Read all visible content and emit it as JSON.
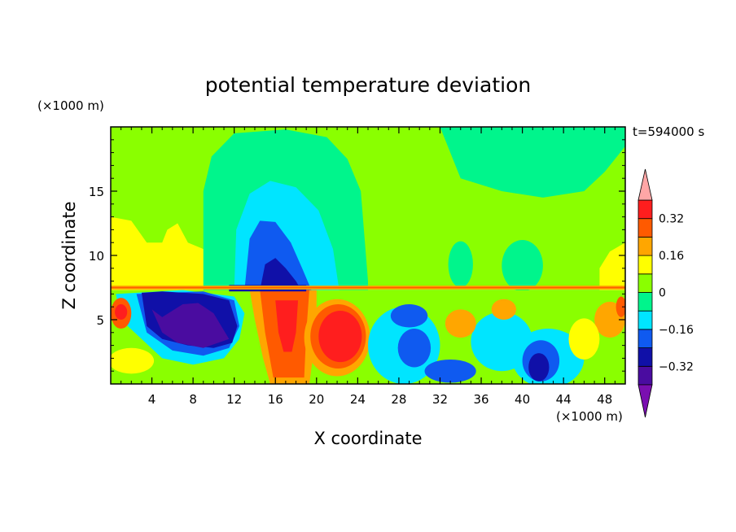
{
  "chart_data": {
    "type": "heatmap",
    "title": "potential temperature deviation",
    "xlabel": "X coordinate",
    "ylabel": "Z coordinate",
    "x_unit": "(×1000 m)",
    "y_unit": "(×1000 m)",
    "time_label": "t=594000 s",
    "xlim": [
      0,
      50
    ],
    "ylim": [
      0,
      20
    ],
    "x_ticks": [
      4,
      8,
      12,
      16,
      20,
      24,
      28,
      32,
      36,
      40,
      44,
      48
    ],
    "y_ticks": [
      5,
      10,
      15
    ],
    "colorbar": {
      "levels": [
        -0.4,
        -0.32,
        -0.24,
        -0.16,
        -0.08,
        0,
        0.08,
        0.16,
        0.24,
        0.32,
        0.4
      ],
      "tick_labels": [
        "0.32",
        "0.16",
        "0",
        "−0.16",
        "−0.32"
      ],
      "tick_values": [
        0.32,
        0.16,
        0,
        -0.16,
        -0.32
      ],
      "colors": [
        "#7a0fb0",
        "#4a0ca0",
        "#1010a8",
        "#0f5af0",
        "#00e5ff",
        "#00f58c",
        "#8aff00",
        "#ffff00",
        "#ffa600",
        "#ff5a00",
        "#ff1e1e",
        "#ffa6a6"
      ]
    },
    "regions": [
      {
        "desc": "upper background",
        "value": 0.02,
        "shape": "rect",
        "x": [
          0,
          50
        ],
        "y": [
          7.3,
          20
        ]
      },
      {
        "desc": "upper-left mid positive",
        "value": 0.06,
        "shape": "rect",
        "x": [
          0,
          9
        ],
        "y": [
          7.3,
          13.5
        ]
      },
      {
        "desc": "upper-left yellow",
        "value": 0.13,
        "shape": "poly",
        "pts": [
          [
            0,
            7.3
          ],
          [
            0,
            13
          ],
          [
            2,
            12.7
          ],
          [
            3.5,
            11
          ],
          [
            5,
            11
          ],
          [
            5.5,
            12
          ],
          [
            6.5,
            12.5
          ],
          [
            7.5,
            11
          ],
          [
            9,
            10.5
          ],
          [
            11,
            8.5
          ],
          [
            11,
            7.3
          ]
        ]
      },
      {
        "desc": "upper-right yellow",
        "value": 0.13,
        "shape": "poly",
        "pts": [
          [
            47.5,
            7.3
          ],
          [
            47.5,
            9
          ],
          [
            48.5,
            10.3
          ],
          [
            50,
            11
          ],
          [
            50,
            7.3
          ]
        ]
      },
      {
        "desc": "large weak negative plume",
        "value": -0.05,
        "shape": "poly",
        "pts": [
          [
            9,
            7.3
          ],
          [
            9,
            15
          ],
          [
            9.8,
            17.7
          ],
          [
            12,
            19.5
          ],
          [
            17,
            19.8
          ],
          [
            21,
            19.2
          ],
          [
            23,
            17.5
          ],
          [
            24.3,
            15
          ],
          [
            24.7,
            11
          ],
          [
            25,
            8
          ],
          [
            25,
            7.3
          ]
        ]
      },
      {
        "desc": "weak negative strip top right",
        "value": -0.05,
        "shape": "poly",
        "pts": [
          [
            32,
            20
          ],
          [
            34,
            16
          ],
          [
            38,
            15
          ],
          [
            42,
            14.5
          ],
          [
            46,
            15
          ],
          [
            48,
            16.5
          ],
          [
            50,
            18.5
          ],
          [
            50,
            20
          ]
        ]
      },
      {
        "desc": "cyan plume",
        "value": -0.12,
        "shape": "poly",
        "pts": [
          [
            12,
            7.3
          ],
          [
            12.2,
            12
          ],
          [
            13.5,
            14.8
          ],
          [
            15.5,
            15.8
          ],
          [
            18,
            15.3
          ],
          [
            20.2,
            13.5
          ],
          [
            21.6,
            10.5
          ],
          [
            22.2,
            7.3
          ]
        ]
      },
      {
        "desc": "blue plume",
        "value": -0.2,
        "shape": "poly",
        "pts": [
          [
            13,
            7.3
          ],
          [
            13.5,
            11.3
          ],
          [
            14.5,
            12.7
          ],
          [
            16,
            12.6
          ],
          [
            17.5,
            11
          ],
          [
            18.6,
            9
          ],
          [
            19.5,
            7.3
          ]
        ]
      },
      {
        "desc": "navy plume",
        "value": -0.28,
        "shape": "poly",
        "pts": [
          [
            14.5,
            7.3
          ],
          [
            15,
            9.3
          ],
          [
            16,
            9.8
          ],
          [
            17,
            9
          ],
          [
            18,
            8
          ],
          [
            18.5,
            7.3
          ]
        ]
      },
      {
        "desc": "weak negative blob",
        "value": -0.05,
        "shape": "ellipse",
        "cx": 34,
        "cy": 9.3,
        "rx": 1.2,
        "ry": 1.8
      },
      {
        "desc": "weak negative blob",
        "value": -0.05,
        "shape": "ellipse",
        "cx": 40,
        "cy": 9.2,
        "rx": 2,
        "ry": 2
      },
      {
        "desc": "lower background",
        "value": 0.03,
        "shape": "rect",
        "x": [
          0,
          50
        ],
        "y": [
          0,
          7.3
        ]
      },
      {
        "desc": "lower cyan",
        "value": -0.12,
        "shape": "poly",
        "pts": [
          [
            0.5,
            7
          ],
          [
            7,
            7.3
          ],
          [
            12,
            6.8
          ],
          [
            13,
            5.5
          ],
          [
            12.5,
            3.5
          ],
          [
            11,
            2
          ],
          [
            8,
            1.5
          ],
          [
            5,
            2
          ],
          [
            3,
            3.5
          ],
          [
            1,
            5
          ]
        ]
      },
      {
        "desc": "lower blue",
        "value": -0.2,
        "shape": "poly",
        "pts": [
          [
            2.5,
            7
          ],
          [
            9,
            7.2
          ],
          [
            12,
            6.5
          ],
          [
            12.5,
            4.5
          ],
          [
            11.5,
            2.8
          ],
          [
            9,
            2.2
          ],
          [
            6,
            2.6
          ],
          [
            3.5,
            4
          ]
        ]
      },
      {
        "desc": "lower navy",
        "value": -0.28,
        "shape": "poly",
        "pts": [
          [
            3,
            7.1
          ],
          [
            3.5,
            4.5
          ],
          [
            5,
            3.5
          ],
          [
            7.5,
            3
          ],
          [
            10,
            2.8
          ],
          [
            11.8,
            3.2
          ],
          [
            12.3,
            4.5
          ],
          [
            11.5,
            6.5
          ],
          [
            9,
            7
          ],
          [
            5,
            7.2
          ]
        ]
      },
      {
        "desc": "lower purple",
        "value": -0.36,
        "shape": "poly",
        "pts": [
          [
            4,
            5.8
          ],
          [
            5,
            5.2
          ],
          [
            7,
            6.2
          ],
          [
            8.5,
            6.3
          ],
          [
            10,
            5.5
          ],
          [
            11.5,
            3.5
          ],
          [
            9,
            2.8
          ],
          [
            6.5,
            3.2
          ],
          [
            5,
            4
          ]
        ]
      },
      {
        "desc": "positive column orange",
        "value": 0.2,
        "shape": "poly",
        "pts": [
          [
            13.5,
            7.3
          ],
          [
            14,
            5
          ],
          [
            14.8,
            2
          ],
          [
            15.5,
            0
          ],
          [
            19.3,
            0
          ],
          [
            19.8,
            3
          ],
          [
            20,
            6
          ],
          [
            20,
            7.3
          ]
        ]
      },
      {
        "desc": "positive column red",
        "value": 0.28,
        "shape": "poly",
        "pts": [
          [
            14.5,
            7.3
          ],
          [
            15,
            4
          ],
          [
            15.8,
            0.5
          ],
          [
            18.8,
            0.5
          ],
          [
            19,
            4
          ],
          [
            19.3,
            7.3
          ]
        ]
      },
      {
        "desc": "positive column pink",
        "value": 0.38,
        "shape": "poly",
        "pts": [
          [
            16,
            6.5
          ],
          [
            16.3,
            4
          ],
          [
            16.8,
            2.5
          ],
          [
            17.6,
            2.5
          ],
          [
            18,
            4
          ],
          [
            18.2,
            6.5
          ]
        ]
      },
      {
        "desc": "positive blob orange",
        "value": 0.2,
        "shape": "ellipse",
        "cx": 22,
        "cy": 3.6,
        "rx": 3.2,
        "ry": 3
      },
      {
        "desc": "positive blob red",
        "value": 0.28,
        "shape": "ellipse",
        "cx": 22.1,
        "cy": 3.7,
        "rx": 2.7,
        "ry": 2.5
      },
      {
        "desc": "positive blob pink",
        "value": 0.38,
        "shape": "ellipse",
        "cx": 22.3,
        "cy": 3.7,
        "rx": 2.1,
        "ry": 2
      },
      {
        "desc": "negative blob cyan",
        "value": -0.12,
        "shape": "ellipse",
        "cx": 28.5,
        "cy": 3,
        "rx": 3.5,
        "ry": 3
      },
      {
        "desc": "negative blob blue",
        "value": -0.2,
        "shape": "ellipse",
        "cx": 29.5,
        "cy": 2.8,
        "rx": 1.6,
        "ry": 1.5
      },
      {
        "desc": "negative blob cyan",
        "value": -0.12,
        "shape": "ellipse",
        "cx": 38,
        "cy": 3.3,
        "rx": 3,
        "ry": 2.3
      },
      {
        "desc": "negative blob cyan",
        "value": -0.12,
        "shape": "ellipse",
        "cx": 42.5,
        "cy": 2,
        "rx": 3.5,
        "ry": 2.3
      },
      {
        "desc": "negative blob blue",
        "value": -0.2,
        "shape": "ellipse",
        "cx": 41.8,
        "cy": 1.8,
        "rx": 1.8,
        "ry": 1.6
      },
      {
        "desc": "negative blob navy",
        "value": -0.28,
        "shape": "ellipse",
        "cx": 41.6,
        "cy": 1.3,
        "rx": 1,
        "ry": 1.1
      },
      {
        "desc": "negative blob blue",
        "value": -0.2,
        "shape": "ellipse",
        "cx": 33,
        "cy": 1,
        "rx": 2.5,
        "ry": 0.9
      },
      {
        "desc": "negative blob blue",
        "value": -0.2,
        "shape": "ellipse",
        "cx": 29,
        "cy": 5.3,
        "rx": 1.8,
        "ry": 0.9
      },
      {
        "desc": "positive blob orange",
        "value": 0.2,
        "shape": "ellipse",
        "cx": 34,
        "cy": 4.7,
        "rx": 1.5,
        "ry": 1.1
      },
      {
        "desc": "positive blob orange",
        "value": 0.2,
        "shape": "ellipse",
        "cx": 38.2,
        "cy": 5.8,
        "rx": 1.2,
        "ry": 0.8
      },
      {
        "desc": "positive blob orange",
        "value": 0.2,
        "shape": "ellipse",
        "cx": 48.5,
        "cy": 5,
        "rx": 1.5,
        "ry": 1.4
      },
      {
        "desc": "positive blob yellow",
        "value": 0.13,
        "shape": "ellipse",
        "cx": 2,
        "cy": 1.8,
        "rx": 2.2,
        "ry": 1
      },
      {
        "desc": "positive blob yellow",
        "value": 0.13,
        "shape": "ellipse",
        "cx": 46,
        "cy": 3.5,
        "rx": 1.5,
        "ry": 1.6
      },
      {
        "desc": "positive blob red",
        "value": 0.28,
        "shape": "ellipse",
        "cx": 1,
        "cy": 5.5,
        "rx": 1,
        "ry": 1.2
      },
      {
        "desc": "positive blob pink",
        "value": 0.38,
        "shape": "ellipse",
        "cx": 1,
        "cy": 5.6,
        "rx": 0.6,
        "ry": 0.6
      },
      {
        "desc": "positive blob red",
        "value": 0.28,
        "shape": "ellipse",
        "cx": 49.6,
        "cy": 6,
        "rx": 0.5,
        "ry": 0.8
      },
      {
        "desc": "inversion band navy",
        "value": -0.28,
        "shape": "rect",
        "x": [
          11.5,
          19
        ],
        "y": [
          7.2,
          7.7
        ]
      },
      {
        "desc": "inversion line orange",
        "value": 0.2,
        "shape": "rect",
        "x": [
          0,
          50
        ],
        "y": [
          7.35,
          7.65
        ]
      },
      {
        "desc": "inversion line red",
        "value": 0.28,
        "shape": "rect",
        "x": [
          0,
          50
        ],
        "y": [
          7.45,
          7.55
        ]
      }
    ]
  }
}
